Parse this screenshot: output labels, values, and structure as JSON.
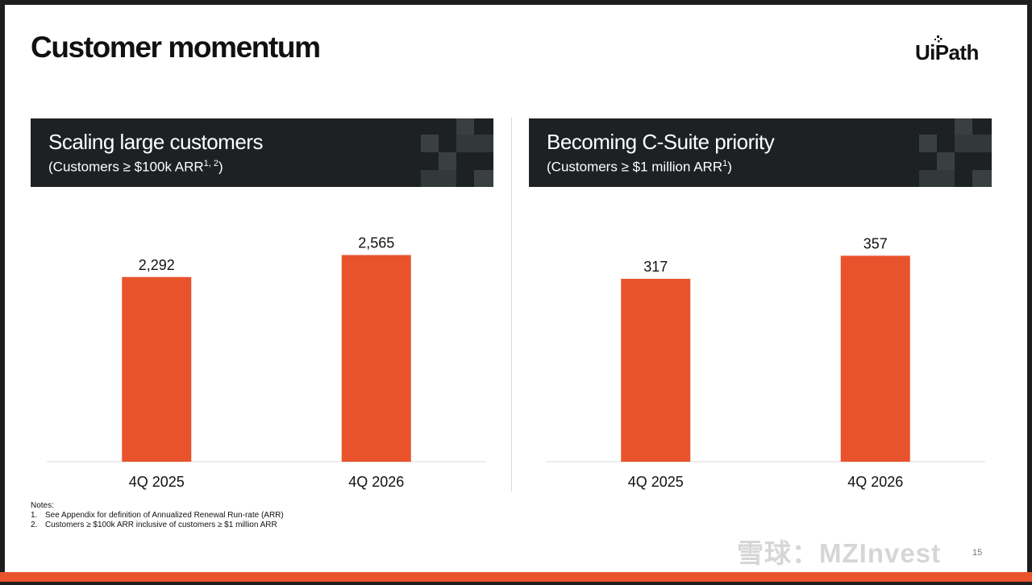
{
  "page": {
    "title": "Customer momentum",
    "logo_text": "UiPath",
    "page_number": "15",
    "watermark": "雪球：MZInvest",
    "colors": {
      "bar": "#e8532c",
      "header_bg": "#1d2124",
      "accent": "#e8532c"
    }
  },
  "panels": [
    {
      "title": "Scaling large customers",
      "subtitle_main": "(Customers ≥ $100k ARR",
      "subtitle_sup": "1, 2",
      "subtitle_end": ")"
    },
    {
      "title": "Becoming C-Suite priority",
      "subtitle_main": "(Customers ≥ $1 million ARR",
      "subtitle_sup": "1",
      "subtitle_end": ")"
    }
  ],
  "chart_data": [
    {
      "type": "bar",
      "categories": [
        "4Q 2025",
        "4Q 2026"
      ],
      "values": [
        2292,
        2565
      ],
      "value_labels": [
        "2,292",
        "2,565"
      ],
      "ylim": [
        0,
        2900
      ]
    },
    {
      "type": "bar",
      "categories": [
        "4Q 2025",
        "4Q 2026"
      ],
      "values": [
        317,
        357
      ],
      "value_labels": [
        "317",
        "357"
      ],
      "ylim": [
        0,
        405
      ]
    }
  ],
  "notes": {
    "heading": "Notes:",
    "items": [
      {
        "num": "1.",
        "text": "See Appendix for definition of Annualized Renewal Run-rate (ARR)"
      },
      {
        "num": "2.",
        "text": "Customers ≥ $100k ARR inclusive of customers ≥ $1 million ARR"
      }
    ]
  }
}
